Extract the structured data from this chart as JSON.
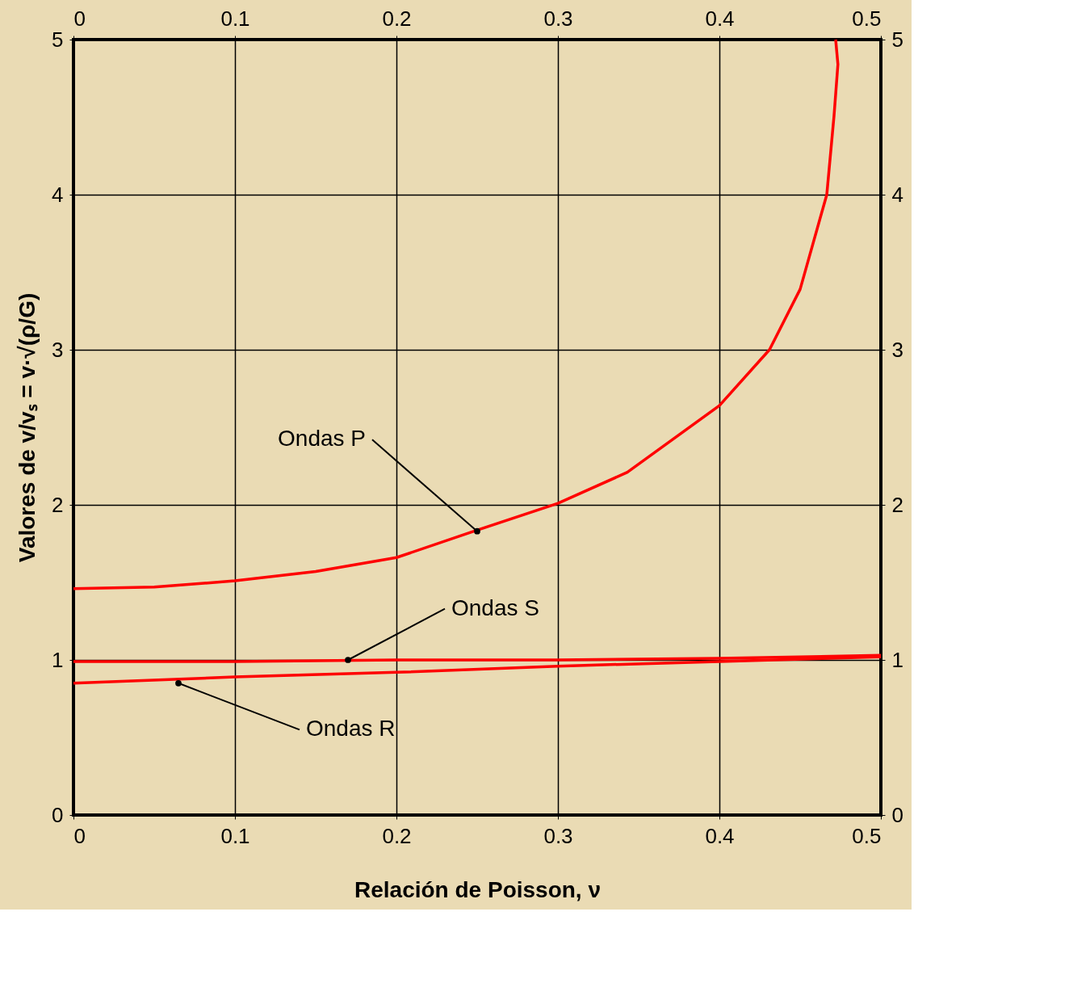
{
  "chart_data": {
    "type": "line",
    "xlabel": "Relación de Poisson, ν",
    "ylabel": "Valores de v/vₛ = v·√(ρ/G)",
    "xlim": [
      0,
      0.5
    ],
    "xticks": [
      0,
      0.1,
      0.2,
      0.3,
      0.4,
      0.5
    ],
    "ylim": [
      0,
      5
    ],
    "yticks": [
      0,
      1,
      2,
      3,
      4,
      5
    ],
    "x2lim": [
      0,
      0.5
    ],
    "x2ticks": [
      0,
      0.1,
      0.2,
      0.3,
      0.4,
      0.5
    ],
    "y2lim": [
      0,
      5
    ],
    "y2ticks": [
      0,
      1,
      2,
      3,
      4,
      5
    ],
    "grid": true,
    "line_style": "solid",
    "marker": "none",
    "series": [
      {
        "color": "#ff0000",
        "x": [
          0,
          0.05,
          0.1,
          0.15,
          0.2,
          0.248,
          0.3,
          0.343,
          0.4,
          0.431,
          0.45,
          0.4665,
          0.471,
          0.4734,
          0.472
        ],
        "values": [
          1.46,
          1.47,
          1.51,
          1.57,
          1.66,
          1.83,
          2.01,
          2.21,
          2.64,
          3.0,
          3.39,
          4.0,
          4.51,
          4.84,
          5.0
        ]
      },
      {
        "color": "#ff0000",
        "x": [
          0,
          0.1,
          0.2,
          0.3,
          0.4,
          0.5
        ],
        "values": [
          0.99,
          0.99,
          1.0,
          1.0,
          1.01,
          1.03
        ]
      },
      {
        "color": "#ff0000",
        "x": [
          0,
          0.1,
          0.2,
          0.3,
          0.4,
          0.5
        ],
        "values": [
          0.85,
          0.89,
          0.92,
          0.96,
          0.99,
          1.02
        ]
      }
    ],
    "annotations": [
      {
        "text": "Ondas P",
        "x": 0.25,
        "y": 1.83
      },
      {
        "text": "Ondas S",
        "x": 0.17,
        "y": 1.0
      },
      {
        "text": "Ondas R",
        "x": 0.065,
        "y": 0.85
      }
    ]
  }
}
